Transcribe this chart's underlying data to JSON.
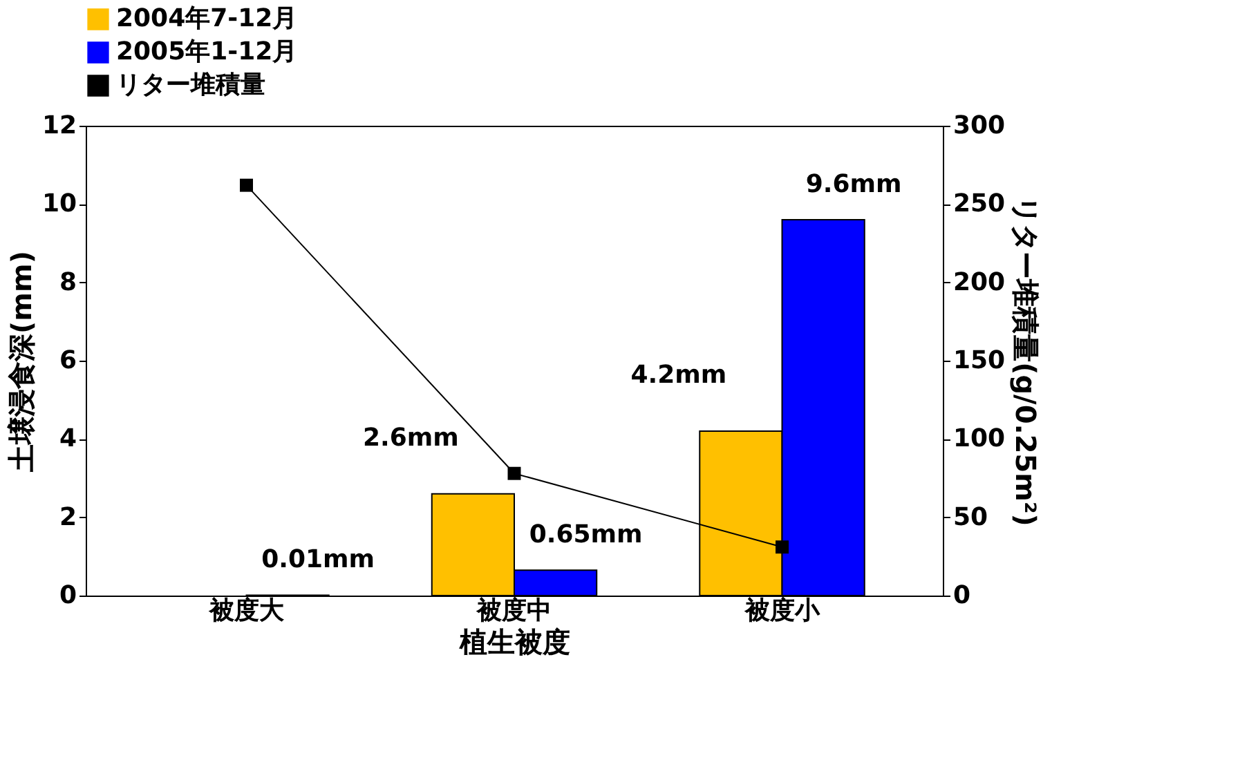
{
  "chart_data": {
    "type": "bar",
    "xlabel": "植生被度",
    "ylabel": "土壌浸食深(mm)",
    "y2label": "リター堆積量(g/0.25m²)",
    "categories": [
      "被度大",
      "被度中",
      "被度小"
    ],
    "series": [
      {
        "name": "2004年7-12月",
        "color": "#ffc000",
        "values": [
          null,
          2.6,
          4.2
        ],
        "value_labels": [
          null,
          "2.6mm",
          "4.2mm"
        ]
      },
      {
        "name": "2005年1-12月",
        "color": "#0000ff",
        "values": [
          0.01,
          0.65,
          9.6
        ],
        "value_labels": [
          "0.01mm",
          "0.65mm",
          "9.6mm"
        ]
      },
      {
        "name": "リター堆積量",
        "color": "#000000",
        "type": "line",
        "axis": "y2",
        "marker": "square",
        "values": [
          262,
          78,
          31
        ]
      }
    ],
    "ylim": [
      0,
      12
    ],
    "yticks": [
      0,
      2,
      4,
      6,
      8,
      10,
      12
    ],
    "y2lim": [
      0,
      300
    ],
    "y2ticks": [
      0,
      50,
      100,
      150,
      200,
      250,
      300
    ],
    "grid": false,
    "legend": "top"
  }
}
